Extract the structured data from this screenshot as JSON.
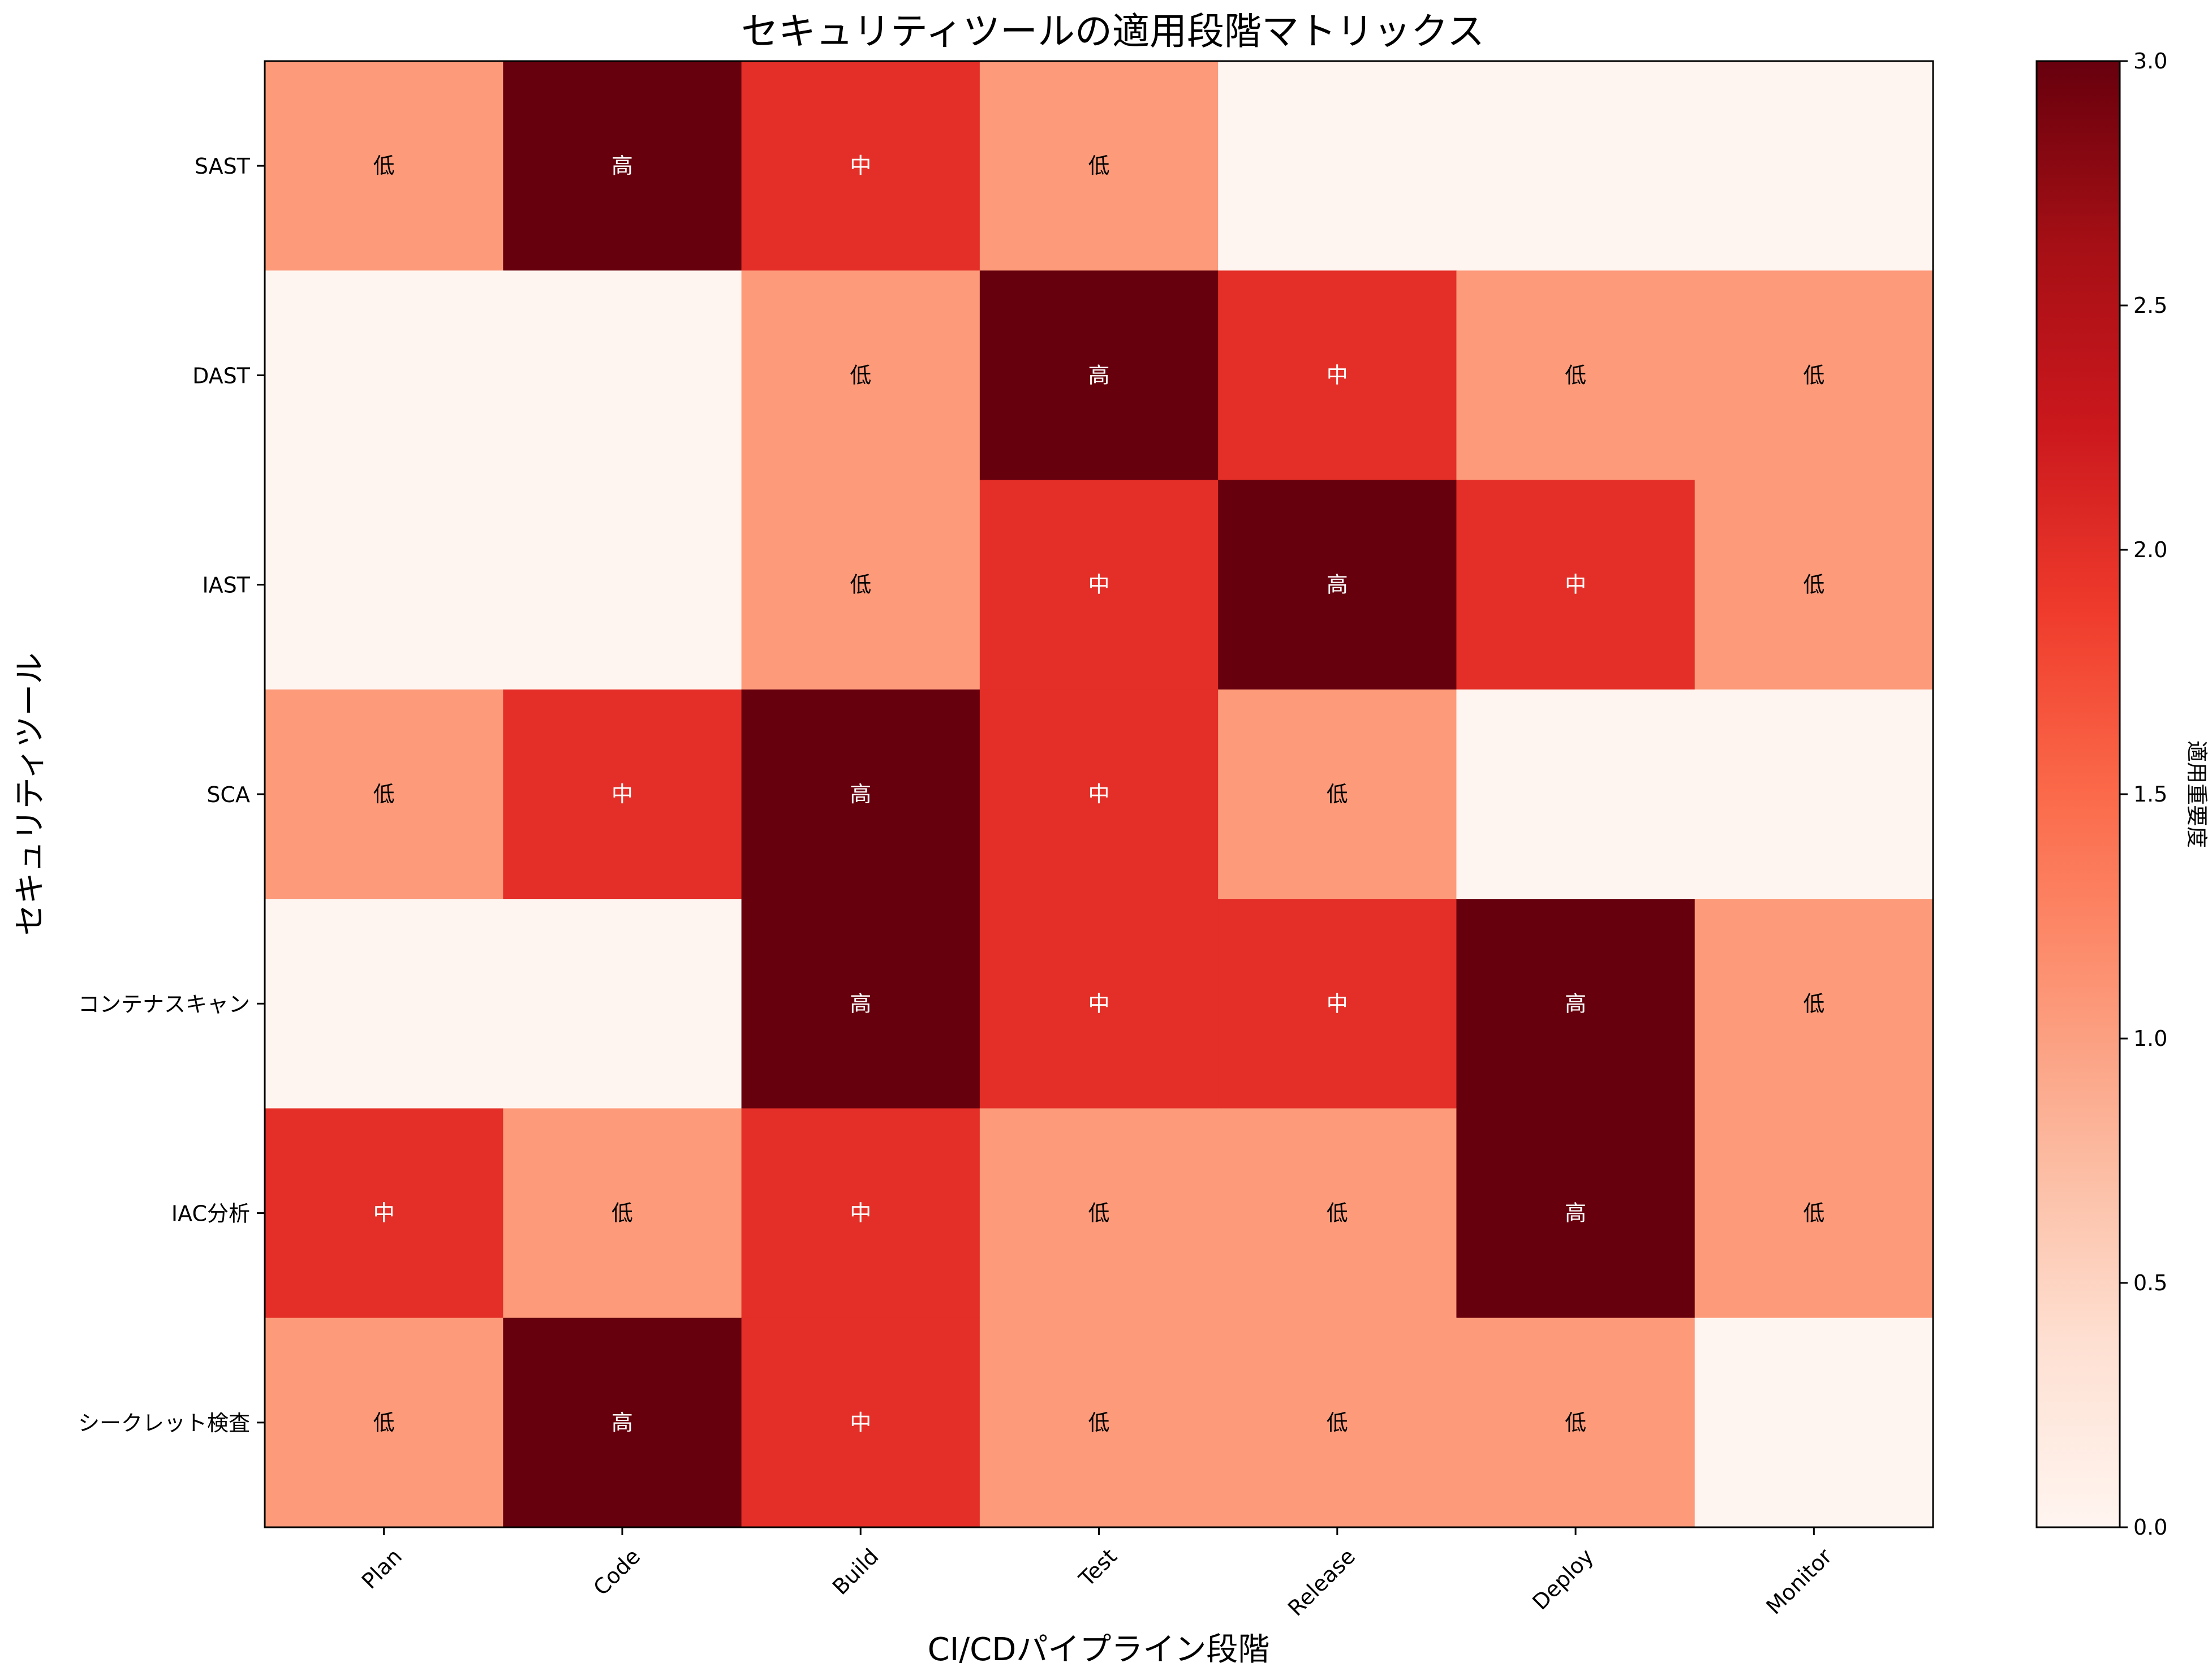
{
  "chart_data": {
    "type": "heatmap",
    "title": "セキュリティツールの適用段階マトリックス",
    "xlabel": "CI/CDパイプライン段階",
    "ylabel": "セキュリティツール",
    "x_categories": [
      "Plan",
      "Code",
      "Build",
      "Test",
      "Release",
      "Deploy",
      "Monitor"
    ],
    "y_categories": [
      "SAST",
      "DAST",
      "IAST",
      "SCA",
      "コンテナスキャン",
      "IAC分析",
      "シークレット検査"
    ],
    "values": [
      [
        1,
        3,
        2,
        1,
        0,
        0,
        0
      ],
      [
        0,
        0,
        1,
        3,
        2,
        1,
        1
      ],
      [
        0,
        0,
        1,
        2,
        3,
        2,
        1
      ],
      [
        1,
        2,
        3,
        2,
        1,
        0,
        0
      ],
      [
        0,
        0,
        3,
        2,
        2,
        3,
        1
      ],
      [
        2,
        1,
        2,
        1,
        1,
        3,
        1
      ],
      [
        1,
        3,
        2,
        1,
        1,
        1,
        0
      ]
    ],
    "value_labels": {
      "0": "",
      "1": "低",
      "2": "中",
      "3": "高"
    },
    "colormap": "Reds",
    "colorbar": {
      "label": "適用重要度",
      "range": [
        0,
        3
      ],
      "ticks": [
        "0.0",
        "0.5",
        "1.0",
        "1.5",
        "2.0",
        "2.5",
        "3.0"
      ]
    },
    "grid": false
  }
}
